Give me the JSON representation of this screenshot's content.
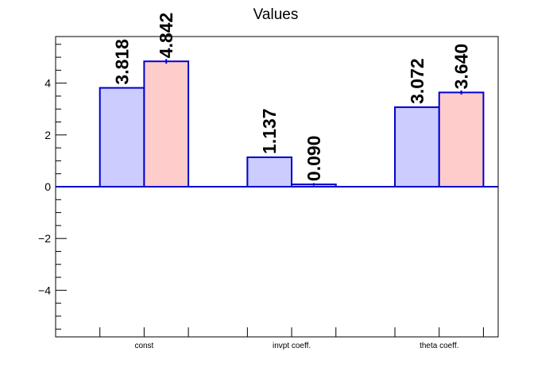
{
  "chart_data": {
    "type": "bar",
    "title": "Values",
    "xlabel": "",
    "ylabel": "",
    "categories": [
      "const",
      "invpt coeff.",
      "theta coeff."
    ],
    "series": [
      {
        "values": [
          3.818,
          1.137,
          3.072
        ],
        "value_labels": [
          "3.818",
          "1.137",
          "3.072"
        ],
        "errors": [
          0,
          0,
          0
        ],
        "fill": "#ccccff",
        "stroke": "#0000cc"
      },
      {
        "values": [
          4.842,
          0.09,
          3.64
        ],
        "value_labels": [
          "4.842",
          "0.090",
          "3.640"
        ],
        "errors": [
          0.09,
          0.05,
          0.08
        ],
        "fill": "#ffcccc",
        "stroke": "#0000cc"
      }
    ],
    "ylim": [
      -5.8,
      5.8
    ],
    "yticks": [
      -4,
      -2,
      0,
      2,
      4
    ],
    "ytick_labels": [
      "−4",
      "−2",
      "0",
      "2",
      "4"
    ],
    "grid": false,
    "legend": "none"
  }
}
